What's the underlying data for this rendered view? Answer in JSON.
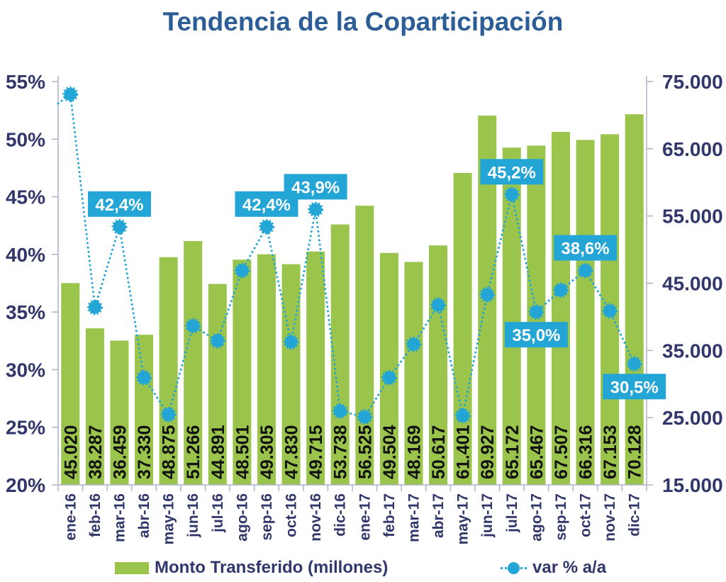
{
  "title": "Tendencia de la Coparticipación",
  "legend": {
    "bar_label": "Monto Transferido (millones)",
    "line_label": "var % a/a"
  },
  "colors": {
    "bar": "#9AC44C",
    "line": "#23A5D5",
    "callout_bg": "#23A5D5",
    "callout_text": "#FFFFFF",
    "title_text": "#2C5D97",
    "axis_text": "#32376B",
    "axis_line": "#AAB4C8",
    "bar_value_text": "#111111"
  },
  "chart_data": {
    "type": "bar+line combo",
    "categories": [
      "ene-16",
      "feb-16",
      "mar-16",
      "abr-16",
      "may-16",
      "jun-16",
      "jul-16",
      "ago-16",
      "sep-16",
      "oct-16",
      "nov-16",
      "dic-16",
      "ene-17",
      "feb-17",
      "mar-17",
      "abr-17",
      "may-17",
      "jun-17",
      "jul-17",
      "ago-17",
      "sep-17",
      "oct-17",
      "nov-17",
      "dic-17"
    ],
    "series": [
      {
        "name": "Monto Transferido (millones)",
        "type": "bar",
        "axis": "right",
        "values": [
          45020,
          38287,
          36459,
          37330,
          48875,
          51266,
          44891,
          48501,
          49305,
          47830,
          49715,
          53738,
          56525,
          49504,
          48169,
          50617,
          61401,
          69927,
          65172,
          65467,
          67507,
          66316,
          67153,
          70128
        ],
        "value_labels": [
          "45.020",
          "38.287",
          "36.459",
          "37.330",
          "48.875",
          "51.266",
          "44.891",
          "48.501",
          "49.305",
          "47.830",
          "49.715",
          "53.738",
          "56.525",
          "49.504",
          "48.169",
          "50.617",
          "61.401",
          "69.927",
          "65.172",
          "65.467",
          "67.507",
          "66.316",
          "67.153",
          "70.128"
        ]
      },
      {
        "name": "var % a/a",
        "type": "line",
        "axis": "left",
        "values": [
          53.9,
          35.4,
          42.4,
          29.3,
          26.1,
          33.8,
          32.5,
          38.6,
          42.4,
          32.4,
          43.9,
          26.4,
          25.9,
          29.3,
          32.2,
          35.6,
          26.0,
          36.5,
          45.2,
          35.0,
          36.9,
          38.6,
          35.1,
          30.5
        ],
        "point_labels": {
          "2": "42,4%",
          "8": "42,4%",
          "10": "43,9%",
          "18": "45,2%",
          "19": "35,0%",
          "21": "38,6%",
          "23": "30,5%"
        },
        "label_below": [
          19,
          23
        ]
      }
    ],
    "left_axis": {
      "min": 20,
      "max": 55,
      "step": 5,
      "tick_labels": [
        "55%",
        "50%",
        "45%",
        "40%",
        "35%",
        "30%",
        "25%",
        "20%"
      ]
    },
    "right_axis": {
      "min": 15000,
      "max": 75000,
      "step": 10000,
      "tick_labels": [
        "75.000",
        "65.000",
        "55.000",
        "45.000",
        "35.000",
        "25.000",
        "15.000"
      ]
    },
    "grid": false,
    "legend_position": "bottom"
  }
}
